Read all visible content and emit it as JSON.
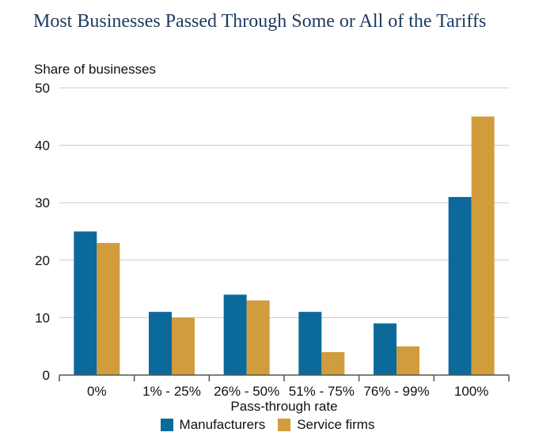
{
  "chart_data": {
    "type": "bar",
    "title": "Most Businesses Passed Through Some or All of the Tariffs",
    "ylabel": "Share of businesses",
    "xlabel": "Pass-through rate",
    "categories": [
      "0%",
      "1% - 25%",
      "26% - 50%",
      "51% - 75%",
      "76% - 99%",
      "100%"
    ],
    "series": [
      {
        "name": "Manufacturers",
        "color": "#0b6a9a",
        "values": [
          25,
          11,
          14,
          11,
          9,
          31
        ]
      },
      {
        "name": "Service firms",
        "color": "#d19c3c",
        "values": [
          23,
          10,
          13,
          4,
          5,
          45
        ]
      }
    ],
    "ylim": [
      0,
      50
    ],
    "yticks": [
      0,
      10,
      20,
      30,
      40,
      50
    ],
    "grid": true,
    "legend": "bottom"
  }
}
